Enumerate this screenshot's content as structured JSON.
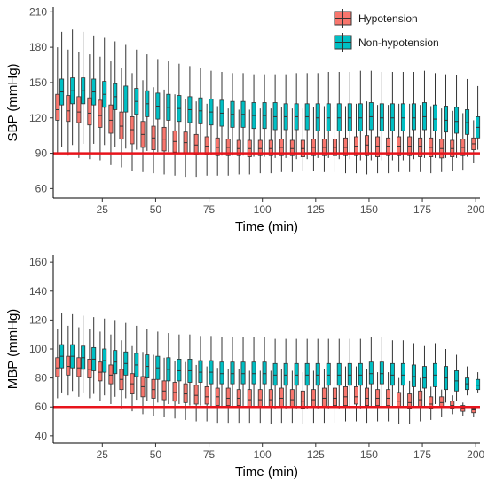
{
  "legend": {
    "placement": "top-right",
    "items": [
      {
        "name": "Hypotension",
        "color": "#F8766D"
      },
      {
        "name": "Non-hypotension",
        "color": "#00BFC4"
      }
    ]
  },
  "threshold_color": "#E8141C",
  "chart_data": [
    {
      "type": "boxplot",
      "id": "sbp",
      "xlabel": "Time (min)",
      "ylabel": "SBP (mmHg)",
      "xlim": [
        2,
        202
      ],
      "ylim": [
        52,
        214
      ],
      "xticks": [
        25,
        50,
        75,
        100,
        125,
        150,
        175,
        200
      ],
      "yticks": [
        60,
        90,
        120,
        150,
        180,
        210
      ],
      "threshold": 90,
      "grid": false,
      "groups": {
        "Hypotension": {
          "t": [
            5,
            10,
            15,
            20,
            25,
            30,
            35,
            40,
            45,
            50,
            55,
            60,
            65,
            70,
            75,
            80,
            85,
            90,
            95,
            100,
            105,
            110,
            115,
            120,
            125,
            130,
            135,
            140,
            145,
            150,
            155,
            160,
            165,
            170,
            175,
            180,
            185,
            190,
            195,
            200
          ],
          "median": [
            127,
            126,
            125,
            124,
            122,
            118,
            113,
            110,
            106,
            103,
            102,
            100,
            99,
            97,
            96,
            95,
            95,
            94,
            94,
            94,
            94,
            95,
            94,
            94,
            95,
            95,
            95,
            95,
            96,
            97,
            96,
            96,
            96,
            96,
            96,
            95,
            94,
            94,
            95,
            98
          ],
          "q1": [
            118,
            117,
            116,
            114,
            112,
            107,
            102,
            98,
            95,
            93,
            92,
            91,
            90,
            89,
            89,
            88,
            88,
            88,
            87,
            88,
            88,
            88,
            88,
            87,
            88,
            88,
            88,
            88,
            88,
            88,
            87,
            88,
            88,
            88,
            87,
            87,
            86,
            87,
            88,
            93
          ],
          "q3": [
            140,
            139,
            138,
            137,
            135,
            131,
            125,
            121,
            117,
            113,
            112,
            109,
            108,
            106,
            104,
            103,
            102,
            101,
            101,
            101,
            101,
            102,
            101,
            101,
            102,
            102,
            102,
            103,
            104,
            105,
            104,
            103,
            104,
            104,
            103,
            103,
            102,
            101,
            102,
            103
          ],
          "min": [
            90,
            88,
            86,
            85,
            84,
            80,
            78,
            75,
            74,
            73,
            72,
            71,
            70,
            70,
            71,
            71,
            71,
            72,
            72,
            73,
            73,
            74,
            74,
            75,
            75,
            74,
            74,
            73,
            73,
            72,
            73,
            73,
            74,
            74,
            74,
            73,
            74,
            75,
            76,
            82
          ],
          "max": [
            180,
            178,
            176,
            174,
            172,
            168,
            162,
            158,
            152,
            146,
            144,
            140,
            136,
            134,
            132,
            130,
            128,
            127,
            127,
            128,
            128,
            129,
            128,
            128,
            129,
            130,
            129,
            130,
            132,
            134,
            131,
            131,
            132,
            132,
            131,
            130,
            128,
            126,
            124,
            118
          ]
        },
        "Non-hypotension": {
          "t": [
            5,
            10,
            15,
            20,
            25,
            30,
            35,
            40,
            45,
            50,
            55,
            60,
            65,
            70,
            75,
            80,
            85,
            90,
            95,
            100,
            105,
            110,
            115,
            120,
            125,
            130,
            135,
            140,
            145,
            150,
            155,
            160,
            165,
            170,
            175,
            180,
            185,
            190,
            195,
            200
          ],
          "median": [
            142,
            143,
            143,
            142,
            140,
            138,
            136,
            134,
            132,
            130,
            129,
            128,
            127,
            126,
            125,
            124,
            123,
            123,
            122,
            122,
            121,
            121,
            121,
            121,
            120,
            120,
            120,
            120,
            120,
            121,
            120,
            120,
            120,
            120,
            121,
            119,
            118,
            117,
            116,
            112
          ],
          "q1": [
            131,
            132,
            132,
            131,
            129,
            127,
            125,
            123,
            121,
            119,
            118,
            117,
            116,
            115,
            114,
            113,
            112,
            112,
            111,
            111,
            110,
            110,
            110,
            110,
            109,
            109,
            109,
            109,
            109,
            110,
            109,
            109,
            109,
            110,
            110,
            109,
            108,
            107,
            106,
            103
          ],
          "q3": [
            153,
            154,
            154,
            153,
            151,
            149,
            147,
            145,
            143,
            141,
            140,
            139,
            138,
            137,
            136,
            135,
            134,
            134,
            133,
            133,
            133,
            132,
            132,
            132,
            132,
            132,
            132,
            132,
            132,
            133,
            132,
            132,
            132,
            132,
            133,
            131,
            130,
            129,
            127,
            121
          ],
          "min": [
            95,
            97,
            98,
            98,
            97,
            95,
            94,
            93,
            92,
            91,
            91,
            90,
            90,
            90,
            89,
            88,
            88,
            88,
            87,
            87,
            86,
            86,
            85,
            85,
            86,
            86,
            85,
            85,
            84,
            84,
            84,
            84,
            84,
            85,
            86,
            86,
            86,
            86,
            87,
            93
          ],
          "max": [
            193,
            195,
            193,
            190,
            188,
            185,
            182,
            178,
            174,
            170,
            168,
            166,
            164,
            162,
            160,
            159,
            158,
            158,
            157,
            157,
            157,
            157,
            158,
            158,
            158,
            159,
            159,
            159,
            160,
            160,
            159,
            159,
            159,
            159,
            160,
            158,
            157,
            156,
            153,
            147
          ]
        }
      }
    },
    {
      "type": "boxplot",
      "id": "mbp",
      "xlabel": "Time (min)",
      "ylabel": "MBP (mmHg)",
      "xlim": [
        2,
        202
      ],
      "ylim": [
        35,
        165
      ],
      "xticks": [
        25,
        50,
        75,
        100,
        125,
        150,
        175,
        200
      ],
      "yticks": [
        40,
        60,
        80,
        100,
        120,
        140,
        160
      ],
      "threshold": 60,
      "grid": false,
      "groups": {
        "Hypotension": {
          "t": [
            5,
            10,
            15,
            20,
            25,
            30,
            35,
            40,
            45,
            50,
            55,
            60,
            65,
            70,
            75,
            80,
            85,
            90,
            95,
            100,
            105,
            110,
            115,
            120,
            125,
            130,
            135,
            140,
            145,
            150,
            155,
            160,
            165,
            170,
            175,
            180,
            185,
            190,
            195,
            200
          ],
          "median": [
            87,
            88,
            87,
            86,
            84,
            82,
            79,
            76,
            74,
            72,
            71,
            70,
            69,
            68,
            67,
            67,
            66,
            66,
            65,
            65,
            65,
            66,
            65,
            64,
            65,
            66,
            66,
            67,
            67,
            66,
            66,
            66,
            64,
            63,
            65,
            62,
            63,
            61,
            59,
            58
          ],
          "q1": [
            81,
            82,
            81,
            80,
            78,
            76,
            72,
            69,
            67,
            66,
            65,
            64,
            63,
            62,
            62,
            61,
            61,
            61,
            60,
            60,
            60,
            60,
            60,
            59,
            60,
            60,
            61,
            61,
            62,
            61,
            61,
            61,
            60,
            59,
            60,
            59,
            60,
            59,
            57,
            56
          ],
          "q3": [
            94,
            95,
            94,
            93,
            91,
            89,
            86,
            83,
            81,
            79,
            78,
            77,
            76,
            75,
            74,
            73,
            73,
            72,
            72,
            72,
            72,
            73,
            72,
            71,
            72,
            73,
            73,
            74,
            74,
            73,
            72,
            72,
            70,
            69,
            71,
            67,
            67,
            64,
            61,
            59
          ],
          "min": [
            66,
            68,
            67,
            66,
            64,
            62,
            59,
            57,
            55,
            54,
            53,
            52,
            51,
            50,
            50,
            49,
            49,
            49,
            49,
            49,
            48,
            49,
            49,
            48,
            49,
            49,
            49,
            50,
            50,
            49,
            50,
            50,
            48,
            48,
            50,
            51,
            53,
            55,
            54,
            53
          ],
          "max": [
            114,
            116,
            115,
            114,
            112,
            110,
            106,
            102,
            98,
            96,
            94,
            92,
            91,
            89,
            88,
            87,
            86,
            86,
            85,
            85,
            85,
            86,
            85,
            84,
            85,
            86,
            86,
            88,
            88,
            86,
            84,
            84,
            80,
            78,
            80,
            74,
            72,
            68,
            63,
            60
          ]
        },
        "Non-hypotension": {
          "t": [
            5,
            10,
            15,
            20,
            25,
            30,
            35,
            40,
            45,
            50,
            55,
            60,
            65,
            70,
            75,
            80,
            85,
            90,
            95,
            100,
            105,
            110,
            115,
            120,
            125,
            130,
            135,
            140,
            145,
            150,
            155,
            160,
            165,
            170,
            175,
            180,
            185,
            190,
            195,
            200
          ],
          "median": [
            95,
            95,
            94,
            93,
            92,
            91,
            90,
            89,
            88,
            87,
            86,
            85,
            85,
            84,
            84,
            83,
            83,
            83,
            83,
            83,
            82,
            82,
            82,
            82,
            82,
            82,
            82,
            82,
            82,
            83,
            83,
            82,
            82,
            81,
            80,
            82,
            80,
            78,
            76,
            75
          ],
          "q1": [
            87,
            87,
            86,
            85,
            84,
            83,
            82,
            81,
            80,
            79,
            78,
            78,
            77,
            77,
            76,
            76,
            76,
            76,
            76,
            76,
            75,
            75,
            75,
            75,
            75,
            75,
            75,
            75,
            75,
            76,
            76,
            75,
            75,
            74,
            73,
            74,
            72,
            71,
            72,
            72
          ],
          "q3": [
            103,
            103,
            102,
            101,
            100,
            99,
            98,
            97,
            96,
            95,
            94,
            93,
            93,
            92,
            92,
            91,
            91,
            91,
            91,
            91,
            90,
            90,
            90,
            90,
            90,
            90,
            90,
            90,
            90,
            91,
            91,
            90,
            90,
            89,
            88,
            90,
            88,
            85,
            80,
            79
          ],
          "min": [
            70,
            71,
            70,
            69,
            68,
            67,
            66,
            65,
            64,
            63,
            62,
            62,
            61,
            61,
            60,
            60,
            60,
            60,
            60,
            60,
            59,
            59,
            59,
            59,
            59,
            59,
            59,
            59,
            59,
            60,
            60,
            60,
            60,
            60,
            60,
            62,
            63,
            64,
            68,
            70
          ],
          "max": [
            125,
            124,
            123,
            122,
            121,
            120,
            118,
            116,
            114,
            112,
            111,
            110,
            110,
            109,
            109,
            108,
            108,
            108,
            108,
            108,
            107,
            107,
            107,
            107,
            107,
            107,
            107,
            107,
            107,
            108,
            108,
            106,
            106,
            104,
            102,
            104,
            100,
            96,
            88,
            84
          ]
        }
      }
    }
  ]
}
